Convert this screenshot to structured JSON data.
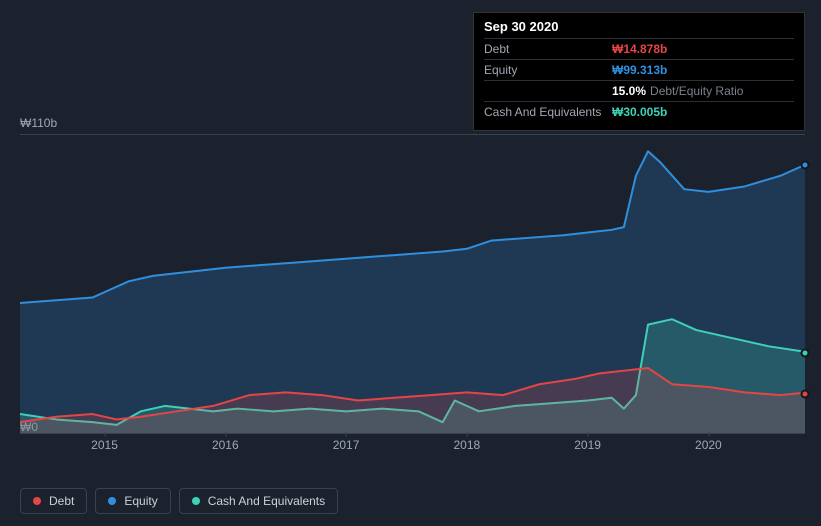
{
  "tooltip": {
    "date": "Sep 30 2020",
    "rows": [
      {
        "label": "Debt",
        "value": "₩14.878b",
        "color": "#e64545",
        "note": ""
      },
      {
        "label": "Equity",
        "value": "₩99.313b",
        "color": "#2f8fdd",
        "note": ""
      },
      {
        "label": "",
        "value": "15.0%",
        "color": "#ffffff",
        "note": "Debt/Equity Ratio"
      },
      {
        "label": "Cash And Equivalents",
        "value": "₩30.005b",
        "color": "#3fd1b8",
        "note": ""
      }
    ]
  },
  "chart": {
    "type": "area",
    "background": "#1b222d",
    "grid_color": "#3a424f",
    "ylim": [
      0,
      110
    ],
    "y_ticks": [
      {
        "v": 110,
        "label": "₩110b"
      },
      {
        "v": 0,
        "label": "₩0"
      }
    ],
    "x_ticks": [
      "2015",
      "2016",
      "2017",
      "2018",
      "2019",
      "2020"
    ],
    "x_domain": [
      2014.3,
      2020.8
    ],
    "series": [
      {
        "name": "Equity",
        "color": "#2f8fdd",
        "fill_opacity": 0.22,
        "line_width": 2,
        "data": [
          [
            2014.3,
            48
          ],
          [
            2014.6,
            49
          ],
          [
            2014.9,
            50
          ],
          [
            2015.0,
            52
          ],
          [
            2015.2,
            56
          ],
          [
            2015.4,
            58
          ],
          [
            2015.6,
            59
          ],
          [
            2015.8,
            60
          ],
          [
            2016.0,
            61
          ],
          [
            2016.3,
            62
          ],
          [
            2016.6,
            63
          ],
          [
            2016.9,
            64
          ],
          [
            2017.2,
            65
          ],
          [
            2017.5,
            66
          ],
          [
            2017.8,
            67
          ],
          [
            2018.0,
            68
          ],
          [
            2018.2,
            71
          ],
          [
            2018.5,
            72
          ],
          [
            2018.8,
            73
          ],
          [
            2019.0,
            74
          ],
          [
            2019.2,
            75
          ],
          [
            2019.3,
            76
          ],
          [
            2019.4,
            95
          ],
          [
            2019.5,
            104
          ],
          [
            2019.6,
            100
          ],
          [
            2019.8,
            90
          ],
          [
            2020.0,
            89
          ],
          [
            2020.3,
            91
          ],
          [
            2020.6,
            95
          ],
          [
            2020.8,
            99
          ]
        ]
      },
      {
        "name": "Cash And Equivalents",
        "color": "#3fd1b8",
        "fill_opacity": 0.22,
        "line_width": 2,
        "data": [
          [
            2014.3,
            7
          ],
          [
            2014.6,
            5
          ],
          [
            2014.9,
            4
          ],
          [
            2015.1,
            3
          ],
          [
            2015.3,
            8
          ],
          [
            2015.5,
            10
          ],
          [
            2015.7,
            9
          ],
          [
            2015.9,
            8
          ],
          [
            2016.1,
            9
          ],
          [
            2016.4,
            8
          ],
          [
            2016.7,
            9
          ],
          [
            2017.0,
            8
          ],
          [
            2017.3,
            9
          ],
          [
            2017.6,
            8
          ],
          [
            2017.8,
            4
          ],
          [
            2017.9,
            12
          ],
          [
            2018.1,
            8
          ],
          [
            2018.4,
            10
          ],
          [
            2018.7,
            11
          ],
          [
            2019.0,
            12
          ],
          [
            2019.2,
            13
          ],
          [
            2019.3,
            9
          ],
          [
            2019.4,
            14
          ],
          [
            2019.5,
            40
          ],
          [
            2019.7,
            42
          ],
          [
            2019.9,
            38
          ],
          [
            2020.2,
            35
          ],
          [
            2020.5,
            32
          ],
          [
            2020.8,
            30
          ]
        ]
      },
      {
        "name": "Debt",
        "color": "#e64545",
        "fill_opacity": 0.2,
        "line_width": 2,
        "data": [
          [
            2014.3,
            4
          ],
          [
            2014.6,
            6
          ],
          [
            2014.9,
            7
          ],
          [
            2015.1,
            5
          ],
          [
            2015.3,
            6
          ],
          [
            2015.6,
            8
          ],
          [
            2015.9,
            10
          ],
          [
            2016.2,
            14
          ],
          [
            2016.5,
            15
          ],
          [
            2016.8,
            14
          ],
          [
            2017.1,
            12
          ],
          [
            2017.4,
            13
          ],
          [
            2017.7,
            14
          ],
          [
            2018.0,
            15
          ],
          [
            2018.3,
            14
          ],
          [
            2018.6,
            18
          ],
          [
            2018.9,
            20
          ],
          [
            2019.1,
            22
          ],
          [
            2019.3,
            23
          ],
          [
            2019.5,
            24
          ],
          [
            2019.7,
            18
          ],
          [
            2020.0,
            17
          ],
          [
            2020.3,
            15
          ],
          [
            2020.6,
            14
          ],
          [
            2020.8,
            14.9
          ]
        ]
      }
    ],
    "legend": [
      {
        "label": "Debt",
        "color": "#e64545"
      },
      {
        "label": "Equity",
        "color": "#2f8fdd"
      },
      {
        "label": "Cash And Equivalents",
        "color": "#3fd1b8"
      }
    ]
  }
}
